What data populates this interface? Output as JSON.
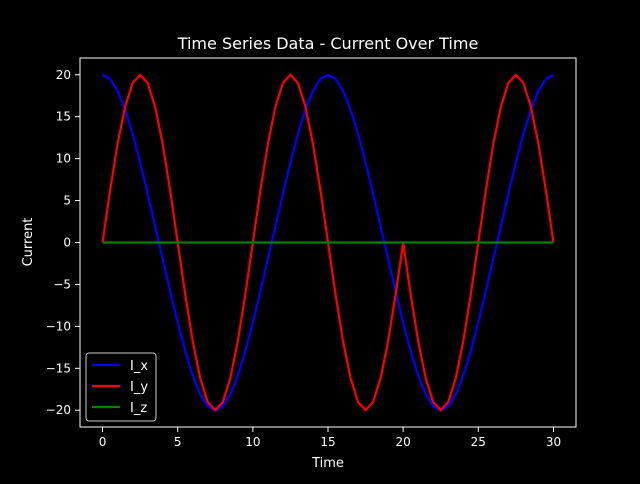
{
  "chart_data": {
    "type": "line",
    "title": "Time Series Data - Current Over Time",
    "xlabel": "Time",
    "ylabel": "Current",
    "xlim": [
      -1.5,
      31.5
    ],
    "ylim": [
      -22,
      22
    ],
    "xticks": [
      0,
      5,
      10,
      15,
      20,
      25,
      30
    ],
    "xtick_labels": [
      "0",
      "5",
      "10",
      "15",
      "20",
      "25",
      "30"
    ],
    "yticks": [
      -20,
      -15,
      -10,
      -5,
      0,
      5,
      10,
      15,
      20
    ],
    "ytick_labels": [
      "−20",
      "−15",
      "−10",
      "−5",
      "0",
      "5",
      "10",
      "15",
      "20"
    ],
    "grid": false,
    "legend_position": "lower-left",
    "background": "#000000",
    "series": [
      {
        "name": "I_x",
        "color": "#0000ff",
        "x": [
          0,
          0.5,
          1,
          1.5,
          2,
          2.5,
          3,
          3.5,
          4,
          4.5,
          5,
          5.5,
          6,
          6.5,
          7,
          7.5,
          8,
          8.5,
          9,
          9.5,
          10,
          10.5,
          11,
          11.5,
          12,
          12.5,
          13,
          13.5,
          14,
          14.5,
          15,
          15.5,
          16,
          16.5,
          17,
          17.5,
          18,
          18.5,
          19,
          19.5,
          20,
          20.5,
          21,
          21.5,
          22,
          22.5,
          23,
          23.5,
          24,
          24.5,
          25,
          25.5,
          26,
          26.5,
          27,
          27.5,
          28,
          28.5,
          29,
          29.5,
          30
        ],
        "y": [
          20,
          19.51,
          18.09,
          15.85,
          12.94,
          9.53,
          5.83,
          1.96,
          -1.96,
          -5.83,
          -9.53,
          -12.94,
          -15.85,
          -18.09,
          -19.51,
          -20,
          -19.51,
          -18.09,
          -15.85,
          -12.94,
          -9.53,
          -5.83,
          -1.96,
          1.96,
          5.83,
          9.53,
          12.94,
          15.85,
          18.09,
          19.51,
          20,
          19.51,
          18.09,
          15.85,
          12.94,
          9.53,
          5.83,
          1.96,
          -1.96,
          -5.83,
          -9.53,
          -12.94,
          -15.85,
          -18.09,
          -19.51,
          -20,
          -19.51,
          -18.09,
          -15.85,
          -12.94,
          -9.53,
          -5.83,
          -1.96,
          1.96,
          5.83,
          9.53,
          12.94,
          15.85,
          18.09,
          19.51,
          20
        ]
      },
      {
        "name": "I_y",
        "color": "#ff0000",
        "x": [
          0,
          0.5,
          1,
          1.5,
          2,
          2.5,
          3,
          3.5,
          4,
          4.5,
          5,
          5.5,
          6,
          6.5,
          7,
          7.5,
          8,
          8.5,
          9,
          9.5,
          10,
          10.5,
          11,
          11.5,
          12,
          12.5,
          13,
          13.5,
          14,
          14.5,
          15,
          15.5,
          16,
          16.5,
          17,
          17.5,
          18,
          18.5,
          19,
          19.5,
          20,
          20.5,
          21,
          21.5,
          22,
          22.5,
          23,
          23.5,
          24,
          24.5,
          25,
          25.5,
          26,
          26.5,
          27,
          27.5,
          28,
          28.5,
          29,
          29.5,
          30
        ],
        "y": [
          0,
          6.18,
          11.76,
          16.18,
          19.02,
          20,
          19.02,
          16.18,
          11.76,
          6.18,
          0,
          -6.18,
          -11.76,
          -16.18,
          -19.02,
          -20,
          -19.02,
          -16.18,
          -11.76,
          -6.18,
          0,
          6.18,
          11.76,
          16.18,
          19.02,
          20,
          19.02,
          16.18,
          11.76,
          6.18,
          0,
          -6.18,
          -11.76,
          -16.18,
          -19.02,
          -20,
          -19.02,
          -16.18,
          -11.76,
          -6.18,
          0,
          -6.18,
          -11.76,
          -16.18,
          -19.02,
          -20,
          -19.02,
          -16.18,
          -11.76,
          -6.18,
          0,
          6.18,
          11.76,
          16.18,
          19.02,
          20,
          19.02,
          16.18,
          11.76,
          6.18,
          0
        ]
      },
      {
        "name": "I_z",
        "color": "#008000",
        "x": [
          0,
          30
        ],
        "y": [
          0,
          0
        ]
      }
    ]
  }
}
